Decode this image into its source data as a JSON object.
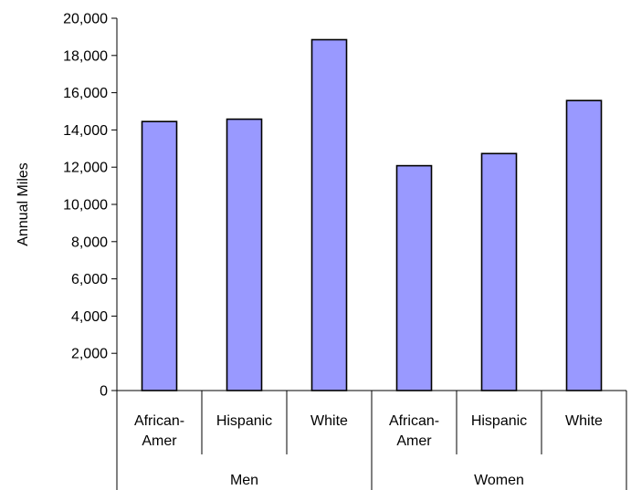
{
  "chart_data": {
    "type": "bar",
    "title": "",
    "xlabel": "",
    "ylabel": "Annual Miles",
    "ylim": [
      0,
      20000
    ],
    "ytick_step": 2000,
    "ytick_labels": [
      "0",
      "2,000",
      "4,000",
      "6,000",
      "8,000",
      "10,000",
      "12,000",
      "14,000",
      "16,000",
      "18,000",
      "20,000"
    ],
    "grid": false,
    "legend": "none",
    "bar_color": "#9999FF",
    "bar_edge_color": "#000000",
    "groups": [
      {
        "name": "Men",
        "categories": [
          {
            "label_lines": [
              "African-",
              "Amer"
            ],
            "value": 14450
          },
          {
            "label_lines": [
              "Hispanic"
            ],
            "value": 14580
          },
          {
            "label_lines": [
              "White"
            ],
            "value": 18850
          }
        ]
      },
      {
        "name": "Women",
        "categories": [
          {
            "label_lines": [
              "African-",
              "Amer"
            ],
            "value": 12080
          },
          {
            "label_lines": [
              "Hispanic"
            ],
            "value": 12730
          },
          {
            "label_lines": [
              "White"
            ],
            "value": 15580
          }
        ]
      }
    ]
  }
}
